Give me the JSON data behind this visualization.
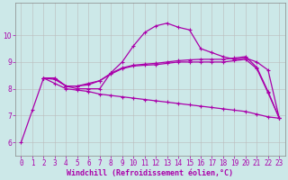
{
  "xlabel": "Windchill (Refroidissement éolien,°C)",
  "bg_color": "#cce8e8",
  "line_color": "#aa00aa",
  "grid_color": "#bbbbbb",
  "xlim": [
    -0.5,
    23.5
  ],
  "ylim": [
    5.5,
    11.2
  ],
  "yticks": [
    6,
    7,
    8,
    9,
    10
  ],
  "xticks": [
    0,
    1,
    2,
    3,
    4,
    5,
    6,
    7,
    8,
    9,
    10,
    11,
    12,
    13,
    14,
    15,
    16,
    17,
    18,
    19,
    20,
    21,
    22,
    23
  ],
  "line1_x": [
    0,
    1,
    2,
    3,
    4,
    5,
    6,
    7,
    8,
    9,
    10,
    11,
    12,
    13,
    14,
    15,
    16,
    17,
    18,
    19,
    20,
    21,
    22,
    23
  ],
  "line1": [
    6.0,
    7.2,
    8.4,
    8.4,
    8.1,
    8.0,
    8.0,
    8.0,
    8.6,
    9.0,
    9.6,
    10.1,
    10.35,
    10.45,
    10.3,
    10.2,
    9.5,
    9.35,
    9.2,
    9.1,
    9.15,
    9.0,
    8.7,
    6.9
  ],
  "line2_x": [
    2,
    3,
    4,
    5,
    6,
    7,
    8,
    9,
    10,
    11,
    12,
    13,
    14,
    15,
    16,
    17,
    18,
    19,
    20,
    21,
    22,
    23
  ],
  "line2": [
    8.4,
    8.4,
    8.1,
    8.1,
    8.15,
    8.3,
    8.55,
    8.75,
    8.85,
    8.88,
    8.9,
    8.95,
    9.0,
    9.0,
    9.0,
    9.0,
    9.0,
    9.05,
    9.1,
    8.75,
    7.85,
    6.9
  ],
  "line3_x": [
    2,
    3,
    4,
    5,
    6,
    7,
    8,
    9,
    10,
    11,
    12,
    13,
    14,
    15,
    16,
    17,
    18,
    19,
    20,
    21,
    22,
    23
  ],
  "line3": [
    8.4,
    8.35,
    8.1,
    8.1,
    8.2,
    8.3,
    8.58,
    8.78,
    8.88,
    8.92,
    8.95,
    9.0,
    9.05,
    9.08,
    9.1,
    9.1,
    9.1,
    9.15,
    9.2,
    8.8,
    7.9,
    6.9
  ],
  "line4_x": [
    2,
    3,
    4,
    5,
    6,
    7,
    8,
    9,
    10,
    11,
    12,
    13,
    14,
    15,
    16,
    17,
    18,
    19,
    20,
    21,
    22,
    23
  ],
  "line4": [
    8.4,
    8.2,
    8.0,
    7.95,
    7.9,
    7.8,
    7.75,
    7.7,
    7.65,
    7.6,
    7.55,
    7.5,
    7.45,
    7.4,
    7.35,
    7.3,
    7.25,
    7.2,
    7.15,
    7.05,
    6.95,
    6.9
  ],
  "marker_on_line1": [
    0,
    1,
    2,
    3,
    4,
    5,
    6,
    7,
    8,
    9,
    10,
    11,
    12,
    13,
    14,
    15,
    16,
    17,
    18,
    19,
    20,
    21,
    22,
    23
  ],
  "tick_fontsize": 5.5,
  "xlabel_fontsize": 6.0,
  "spine_color": "#888888"
}
